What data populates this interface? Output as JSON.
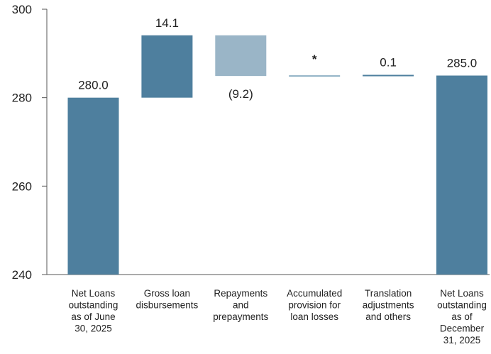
{
  "chart_data": {
    "type": "waterfall",
    "categories": [
      [
        "Net Loans",
        "outstanding",
        "as of June",
        "30, 2025"
      ],
      [
        "Gross loan",
        "disbursements"
      ],
      [
        "Repayments",
        "and",
        "prepayments"
      ],
      [
        "Accumulated",
        "provision for",
        "loan losses"
      ],
      [
        "Translation",
        "adjustments",
        "and others"
      ],
      [
        "Net Loans",
        "outstanding",
        "as of",
        "December",
        "31, 2025"
      ]
    ],
    "bars": [
      {
        "kind": "total",
        "start": 240,
        "end": 280.0,
        "label": "280.0",
        "label_pos": "above"
      },
      {
        "kind": "increase",
        "start": 280.0,
        "end": 294.1,
        "label": "14.1",
        "label_pos": "above"
      },
      {
        "kind": "decrease",
        "start": 294.1,
        "end": 284.9,
        "label": "(9.2)",
        "label_pos": "below"
      },
      {
        "kind": "change",
        "start": 284.9,
        "end": 284.9,
        "label": "*",
        "label_pos": "above"
      },
      {
        "kind": "increase",
        "start": 284.9,
        "end": 285.0,
        "label": "0.1",
        "label_pos": "above"
      },
      {
        "kind": "total",
        "start": 240,
        "end": 285.0,
        "label": "285.0",
        "label_pos": "above"
      }
    ],
    "yticks": [
      "240",
      "260",
      "280",
      "300"
    ],
    "ylim": [
      240,
      300
    ],
    "colors": {
      "total": "#4e7f9e",
      "increase": "#4e7f9e",
      "decrease": "#9ab5c7",
      "change": "#8fb1c4",
      "axis": "#555555",
      "text": "#222222"
    }
  }
}
